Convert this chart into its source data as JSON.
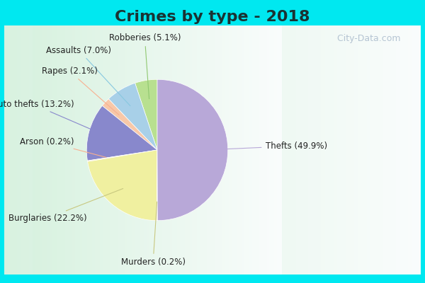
{
  "title": "Crimes by type - 2018",
  "title_fontsize": 16,
  "title_fontweight": "bold",
  "title_color": "#1a3333",
  "labels": [
    "Thefts",
    "Burglaries",
    "Murders",
    "Arson",
    "Auto thefts",
    "Rapes",
    "Assaults",
    "Robberies"
  ],
  "percentages": [
    49.9,
    22.2,
    0.2,
    0.2,
    13.2,
    2.1,
    7.0,
    5.1
  ],
  "colors": [
    "#b8a8d8",
    "#f0f0a0",
    "#f5ddc0",
    "#f8c8a8",
    "#8888cc",
    "#a8d0e8",
    "#98d0e0",
    "#b8e090"
  ],
  "border_color": "#00e8f0",
  "label_fontsize": 8.5,
  "label_color": "#222222",
  "startangle": 90,
  "arrow_color_thefts": "#b8a8d8",
  "arrow_color_burglaries": "#c8c880",
  "arrow_color_arson": "#f8b090",
  "arrow_color_autothefts": "#8888cc",
  "arrow_color_assaults": "#88c8e0",
  "arrow_color_robberies": "#90c870",
  "watermark": "  City-Data.com",
  "watermark_color": "#aabbcc",
  "watermark_fontsize": 9
}
